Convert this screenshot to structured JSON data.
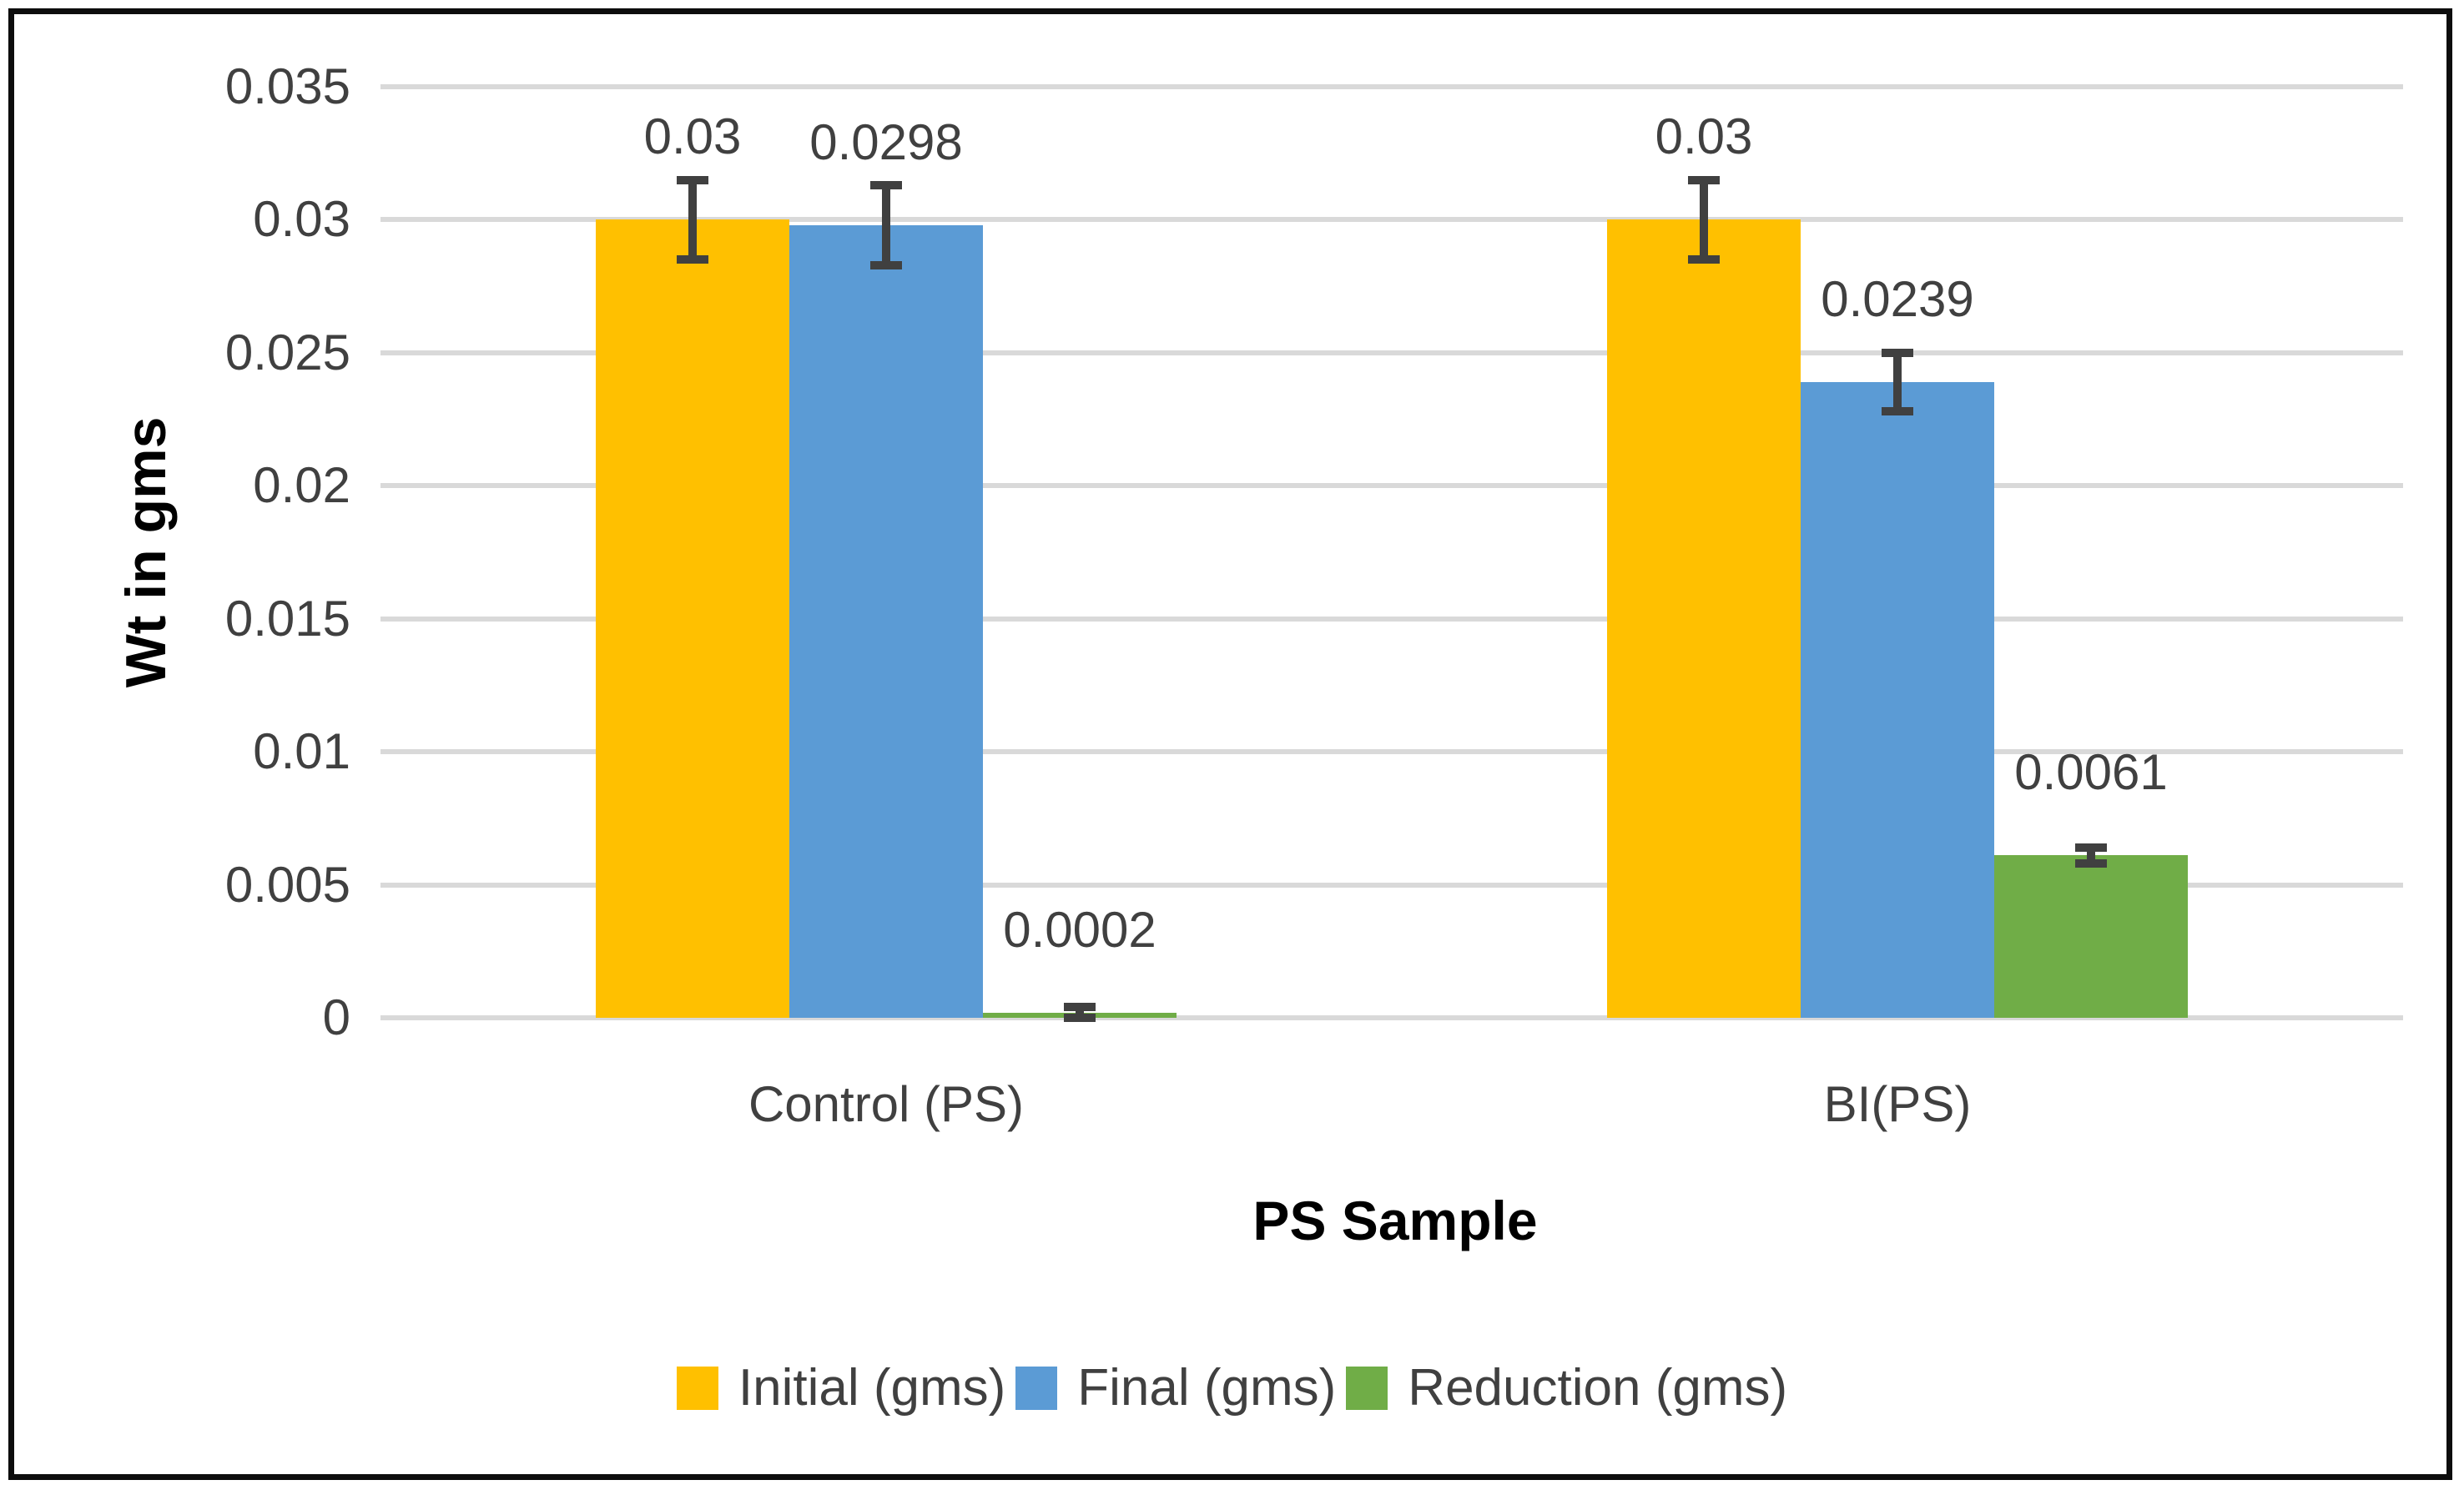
{
  "chart_data": {
    "type": "bar",
    "categories": [
      "Control (PS)",
      "BI(PS)"
    ],
    "series": [
      {
        "name": "Initial (gms)",
        "color": "#FFC000",
        "values": [
          0.03,
          0.03
        ],
        "errors": [
          0.0015,
          0.0015
        ],
        "labels": [
          "0.03",
          "0.03"
        ]
      },
      {
        "name": "Final (gms)",
        "color": "#5B9BD5",
        "values": [
          0.0298,
          0.0239
        ],
        "errors": [
          0.0015,
          0.0011
        ],
        "labels": [
          "0.0298",
          "0.0239"
        ]
      },
      {
        "name": "Reduction (gms)",
        "color": "#70AD47",
        "values": [
          0.0002,
          0.0061
        ],
        "errors": [
          0.0002,
          0.0003
        ],
        "labels": [
          "0.0002",
          "0.0061"
        ]
      }
    ],
    "xlabel": "PS Sample",
    "ylabel": "Wt in gms",
    "ylim": [
      0,
      0.035
    ],
    "ytick_step": 0.005,
    "yticks": [
      "0.035",
      "0.03",
      "0.025",
      "0.02",
      "0.015",
      "0.01",
      "0.005",
      "0"
    ],
    "grid": true,
    "legend_position": "bottom",
    "colors": {
      "gridline": "#D9D9D9",
      "error_bar": "#404040",
      "tick_text": "#404040",
      "data_label_text": "#404040",
      "axis_title_text": "#000000",
      "border": "#0d0d0d"
    }
  }
}
